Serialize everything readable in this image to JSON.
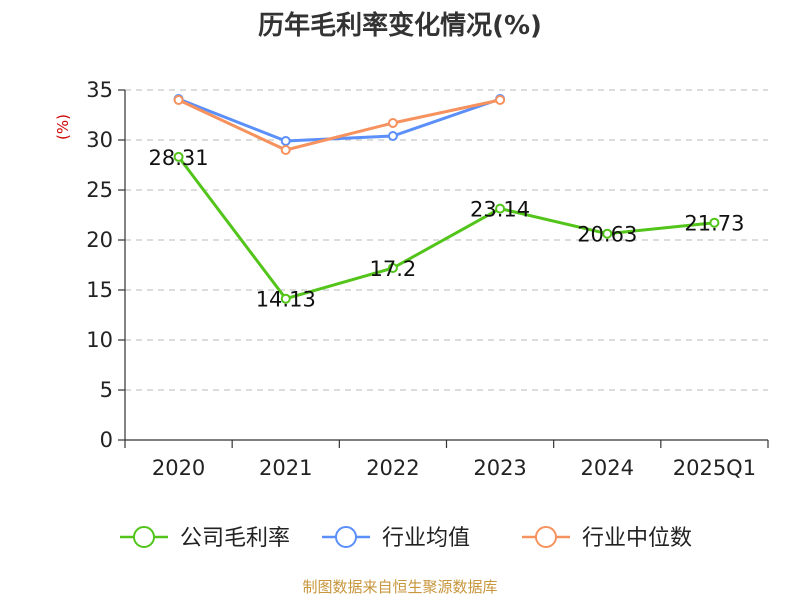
{
  "chart_data": {
    "type": "line",
    "title": "历年毛利率变化情况(%)",
    "ylabel": "(%)",
    "categories": [
      "2020",
      "2021",
      "2022",
      "2023",
      "2024",
      "2025Q1"
    ],
    "ylim": [
      0,
      35
    ],
    "yticks": [
      0,
      5,
      10,
      15,
      20,
      25,
      30,
      35
    ],
    "grid": true,
    "legend_position": "bottom",
    "series": [
      {
        "name": "公司毛利率",
        "color": "#52c41a",
        "values": [
          28.31,
          14.13,
          17.2,
          23.14,
          20.63,
          21.73
        ],
        "labels": [
          "28.31",
          "14.13",
          "17.2",
          "23.14",
          "20.63",
          "21.73"
        ]
      },
      {
        "name": "行业均值",
        "color": "#5b8ff9",
        "values": [
          34.1,
          29.9,
          30.4,
          34.1,
          null,
          null
        ]
      },
      {
        "name": "行业中位数",
        "color": "#f5925e",
        "values": [
          34.0,
          29.0,
          31.7,
          34.0,
          null,
          null
        ]
      }
    ]
  },
  "source": "制图数据来自恒生聚源数据库",
  "colors": {
    "ylabel": "#cc0000",
    "source": "#c8963c",
    "axis": "#333333",
    "grid": "#c8c8c8"
  }
}
